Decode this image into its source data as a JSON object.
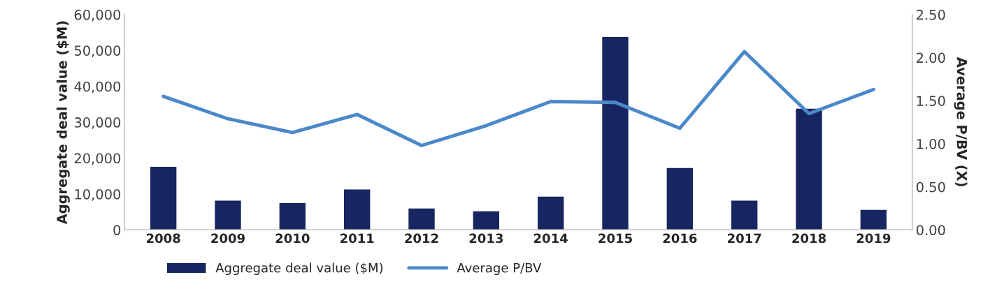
{
  "chart_data": {
    "type": "bar",
    "ylabel": "Aggregate deal value ($M)",
    "y2label": "Average P/BV (X)",
    "categories": [
      "2008",
      "2009",
      "2010",
      "2011",
      "2012",
      "2013",
      "2014",
      "2015",
      "2016",
      "2017",
      "2018",
      "2019"
    ],
    "series": [
      {
        "name": "Aggregate deal value ($M)",
        "color": "#172660",
        "values": [
          17700,
          8300,
          7600,
          11400,
          6100,
          5300,
          9400,
          53900,
          17400,
          8300,
          33900,
          5700
        ]
      },
      {
        "name": "Average P/BV",
        "type": "line",
        "axis": "y2",
        "color": "#4a88c9",
        "values": [
          1.55,
          1.29,
          1.13,
          1.34,
          0.98,
          1.21,
          1.49,
          1.48,
          1.18,
          2.07,
          1.35,
          1.63
        ]
      }
    ],
    "ylim": [
      0,
      60000
    ],
    "yticks": [
      {
        "value": 0,
        "label": "0"
      },
      {
        "value": 10000,
        "label": "10,000"
      },
      {
        "value": 20000,
        "label": "20,000"
      },
      {
        "value": 30000,
        "label": "30,000"
      },
      {
        "value": 40000,
        "label": "40,000"
      },
      {
        "value": 50000,
        "label": "50,000"
      },
      {
        "value": 60000,
        "label": "60,000"
      }
    ],
    "y2lim": [
      0,
      2.5
    ],
    "y2ticks": [
      {
        "value": 0,
        "label": "0.00"
      },
      {
        "value": 0.5,
        "label": "0.50"
      },
      {
        "value": 1,
        "label": "1.00"
      },
      {
        "value": 1.5,
        "label": "1.50"
      },
      {
        "value": 2,
        "label": "2.00"
      },
      {
        "value": 2.5,
        "label": "2.50"
      }
    ],
    "grid": false,
    "legend": "bottom left",
    "marker": "none",
    "line_style": "solid"
  }
}
